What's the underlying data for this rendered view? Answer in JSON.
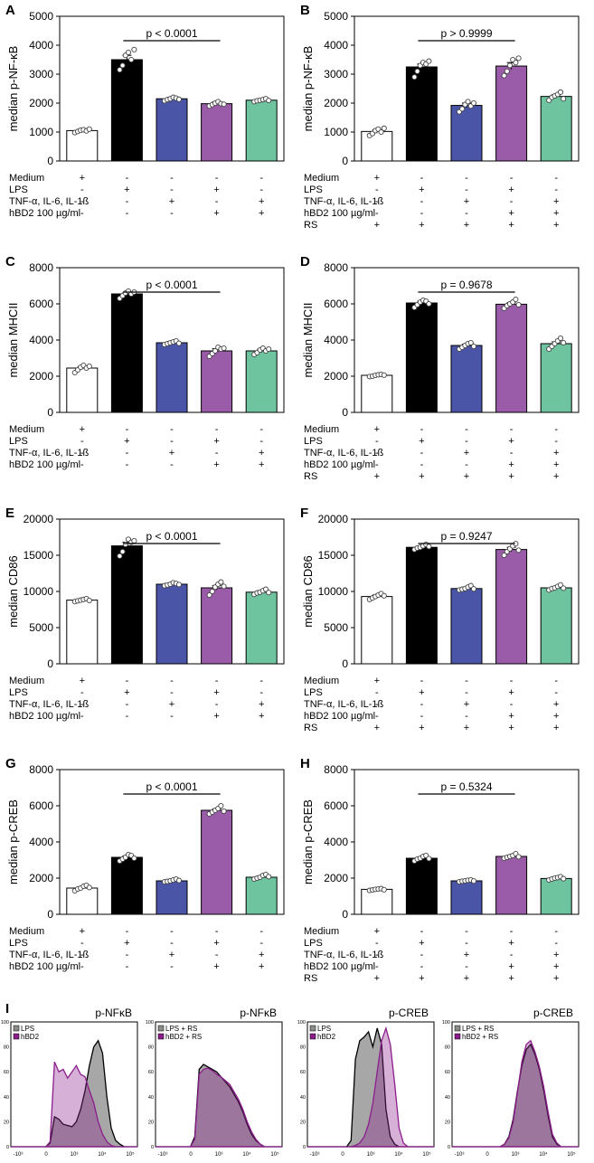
{
  "figure": {
    "colors": {
      "medium": "#ffffff",
      "lps": "#000000",
      "tnf": "#4a55a8",
      "hbd2": "#9a5ba8",
      "combo": "#6fc4a0",
      "hist_lps": "#8a8a8a",
      "hist_hbd2": "#8b1e8b"
    },
    "row_labels": [
      "Medium",
      "LPS",
      "TNF-α, IL-6, IL-1ß",
      "hBD2 100 µg/ml",
      "RS"
    ],
    "treatment_signs": [
      [
        "+",
        "-",
        "-",
        "-",
        "-"
      ],
      [
        "-",
        "+",
        "-",
        "+",
        "-"
      ],
      [
        "-",
        "-",
        "+",
        "-",
        "+"
      ],
      [
        "-",
        "-",
        "-",
        "+",
        "+"
      ],
      [
        "+",
        "+",
        "+",
        "+",
        "+"
      ]
    ]
  },
  "chart_data": [
    {
      "panel": "A",
      "type": "bar",
      "ylabel": "median p-NF-κB",
      "ylim": [
        0,
        5000
      ],
      "yticks": [
        0,
        1000,
        2000,
        3000,
        4000,
        5000
      ],
      "categories": [
        "Medium",
        "LPS",
        "TNF-α, IL-6, IL-1ß",
        "LPS + hBD2",
        "TNF-α, IL-6, IL-1ß + hBD2"
      ],
      "values": [
        1050,
        3500,
        2150,
        1980,
        2100
      ],
      "errors": [
        40,
        150,
        50,
        60,
        50
      ],
      "points": [
        [
          980,
          1020,
          1060,
          1080,
          1040,
          1100
        ],
        [
          3150,
          3300,
          3650,
          3750,
          3500,
          3850
        ],
        [
          2080,
          2120,
          2150,
          2200,
          2170,
          2130
        ],
        [
          1900,
          1950,
          2000,
          2050,
          1980,
          1960
        ],
        [
          2050,
          2080,
          2100,
          2120,
          2150,
          2090
        ]
      ],
      "comparison": {
        "from": 1,
        "to": 3,
        "label": "p < 0.0001"
      },
      "rs": false
    },
    {
      "panel": "B",
      "type": "bar",
      "ylabel": "median p-NF-κB",
      "ylim": [
        0,
        5000
      ],
      "yticks": [
        0,
        1000,
        2000,
        3000,
        4000,
        5000
      ],
      "categories": [
        "Medium",
        "LPS",
        "TNF-α, IL-6, IL-1ß",
        "LPS + hBD2",
        "TNF-α, IL-6, IL-1ß + hBD2"
      ],
      "values": [
        1020,
        3250,
        1920,
        3280,
        2230
      ],
      "errors": [
        60,
        100,
        80,
        120,
        60
      ],
      "points": [
        [
          880,
          950,
          1050,
          1100,
          1000,
          1130
        ],
        [
          2900,
          3100,
          3300,
          3400,
          3350,
          3450
        ],
        [
          1700,
          1800,
          1950,
          2050,
          1900,
          2000
        ],
        [
          2950,
          3100,
          3300,
          3500,
          3400,
          3550
        ],
        [
          2100,
          2200,
          2250,
          2300,
          2380,
          2150
        ]
      ],
      "comparison": {
        "from": 1,
        "to": 3,
        "label": "p > 0.9999"
      },
      "rs": true
    },
    {
      "panel": "C",
      "type": "bar",
      "ylabel": "median MHCII",
      "ylim": [
        0,
        8000
      ],
      "yticks": [
        0,
        2000,
        4000,
        6000,
        8000
      ],
      "categories": [
        "Medium",
        "LPS",
        "TNF-α, IL-6, IL-1ß",
        "LPS + hBD2",
        "TNF-α, IL-6, IL-1ß + hBD2"
      ],
      "values": [
        2450,
        6550,
        3850,
        3400,
        3400
      ],
      "errors": [
        80,
        80,
        60,
        120,
        90
      ],
      "points": [
        [
          2200,
          2350,
          2500,
          2600,
          2450,
          2550
        ],
        [
          6300,
          6450,
          6600,
          6700,
          6550,
          6650
        ],
        [
          3750,
          3800,
          3850,
          3900,
          3950,
          3820
        ],
        [
          3100,
          3250,
          3400,
          3600,
          3500,
          3550
        ],
        [
          3200,
          3300,
          3450,
          3550,
          3400,
          3500
        ]
      ],
      "comparison": {
        "from": 1,
        "to": 3,
        "label": "p < 0.0001"
      },
      "rs": false
    },
    {
      "panel": "D",
      "type": "bar",
      "ylabel": "median MHCII",
      "ylim": [
        0,
        8000
      ],
      "yticks": [
        0,
        2000,
        4000,
        6000,
        8000
      ],
      "categories": [
        "Medium",
        "LPS",
        "TNF-α, IL-6, IL-1ß",
        "LPS + hBD2",
        "TNF-α, IL-6, IL-1ß + hBD2"
      ],
      "values": [
        2050,
        6050,
        3700,
        5980,
        3800
      ],
      "errors": [
        40,
        90,
        70,
        90,
        100
      ],
      "points": [
        [
          1980,
          2000,
          2050,
          2080,
          2100,
          2060
        ],
        [
          5800,
          5950,
          6100,
          6200,
          6150,
          6000
        ],
        [
          3500,
          3600,
          3700,
          3800,
          3850,
          3650
        ],
        [
          5750,
          5900,
          6000,
          6100,
          6250,
          5950
        ],
        [
          3500,
          3650,
          3800,
          3950,
          4100,
          3850
        ]
      ],
      "comparison": {
        "from": 1,
        "to": 3,
        "label": "p = 0.9678"
      },
      "rs": true
    },
    {
      "panel": "E",
      "type": "bar",
      "ylabel": "median CD86",
      "ylim": [
        0,
        20000
      ],
      "yticks": [
        0,
        5000,
        10000,
        15000,
        20000
      ],
      "categories": [
        "Medium",
        "LPS",
        "TNF-α, IL-6, IL-1ß",
        "LPS + hBD2",
        "TNF-α, IL-6, IL-1ß + hBD2"
      ],
      "values": [
        8800,
        16300,
        11000,
        10500,
        9900
      ],
      "errors": [
        100,
        500,
        120,
        300,
        150
      ],
      "points": [
        [
          8600,
          8700,
          8800,
          8900,
          9000,
          8750
        ],
        [
          14900,
          15500,
          16500,
          17200,
          16800,
          17000
        ],
        [
          10800,
          10900,
          11000,
          11200,
          11100,
          10950
        ],
        [
          9500,
          10000,
          10600,
          11000,
          11300,
          10700
        ],
        [
          9600,
          9800,
          9900,
          10100,
          10300,
          9850
        ]
      ],
      "comparison": {
        "from": 1,
        "to": 3,
        "label": "p < 0.0001"
      },
      "rs": false
    },
    {
      "panel": "F",
      "type": "bar",
      "ylabel": "median CD86",
      "ylim": [
        0,
        20000
      ],
      "yticks": [
        0,
        5000,
        10000,
        15000,
        20000
      ],
      "categories": [
        "Medium",
        "LPS",
        "TNF-α, IL-6, IL-1ß",
        "LPS + hBD2",
        "TNF-α, IL-6, IL-1ß + hBD2"
      ],
      "values": [
        9300,
        16100,
        10400,
        15800,
        10500
      ],
      "errors": [
        200,
        150,
        100,
        300,
        120
      ],
      "points": [
        [
          8900,
          9100,
          9300,
          9500,
          9700,
          9400
        ],
        [
          15800,
          16000,
          16100,
          16300,
          16500,
          16200
        ],
        [
          10200,
          10300,
          10400,
          10600,
          10800,
          10350
        ],
        [
          15000,
          15500,
          15900,
          16300,
          16600,
          15700
        ],
        [
          10200,
          10400,
          10500,
          10700,
          10900,
          10450
        ]
      ],
      "comparison": {
        "from": 1,
        "to": 3,
        "label": "p = 0.9247"
      },
      "rs": true
    },
    {
      "panel": "G",
      "type": "bar",
      "ylabel": "median p-CREB",
      "ylim": [
        0,
        8000
      ],
      "yticks": [
        0,
        2000,
        4000,
        6000,
        8000
      ],
      "categories": [
        "Medium",
        "LPS",
        "TNF-α, IL-6, IL-1ß",
        "LPS + hBD2",
        "TNF-α, IL-6, IL-1ß + hBD2"
      ],
      "values": [
        1450,
        3150,
        1850,
        5750,
        2050
      ],
      "errors": [
        60,
        80,
        40,
        70,
        60
      ],
      "points": [
        [
          1300,
          1400,
          1450,
          1550,
          1600,
          1480
        ],
        [
          2950,
          3050,
          3150,
          3300,
          3250,
          3100
        ],
        [
          1800,
          1820,
          1850,
          1900,
          1950,
          1870
        ],
        [
          5550,
          5650,
          5750,
          5850,
          6000,
          5700
        ],
        [
          1950,
          2000,
          2050,
          2150,
          2200,
          2080
        ]
      ],
      "comparison": {
        "from": 1,
        "to": 3,
        "label": "p < 0.0001"
      },
      "rs": false
    },
    {
      "panel": "H",
      "type": "bar",
      "ylabel": "median p-CREB",
      "ylim": [
        0,
        8000
      ],
      "yticks": [
        0,
        2000,
        4000,
        6000,
        8000
      ],
      "categories": [
        "Medium",
        "LPS",
        "TNF-α, IL-6, IL-1ß",
        "LPS + hBD2",
        "TNF-α, IL-6, IL-1ß + hBD2"
      ],
      "values": [
        1380,
        3100,
        1850,
        3200,
        1980
      ],
      "errors": [
        30,
        60,
        30,
        50,
        40
      ],
      "points": [
        [
          1320,
          1350,
          1380,
          1400,
          1420,
          1360
        ],
        [
          2950,
          3050,
          3100,
          3200,
          3250,
          3080
        ],
        [
          1800,
          1830,
          1850,
          1880,
          1900,
          1840
        ],
        [
          3100,
          3150,
          3200,
          3250,
          3350,
          3180
        ],
        [
          1900,
          1950,
          2000,
          2030,
          2080,
          1970
        ]
      ],
      "comparison": {
        "from": 1,
        "to": 3,
        "label": "p = 0.5324"
      },
      "rs": true
    },
    {
      "panel": "I",
      "type": "histogram-overlay",
      "x_scale": "log",
      "x_tick_labels": [
        "-10³",
        "0",
        "10³",
        "10⁴",
        "10⁵"
      ],
      "y_tick_labels": [
        "0",
        "20",
        "40",
        "60",
        "80",
        "100"
      ],
      "plots": [
        {
          "title": "p-NFκB",
          "legend": [
            "LPS",
            "hBD2"
          ],
          "series": [
            {
              "name": "LPS",
              "color_key": "hist_lps",
              "density": [
                0,
                0,
                0,
                0,
                0,
                0,
                0,
                0,
                0,
                3,
                24,
                22,
                18,
                17,
                16,
                20,
                30,
                45,
                65,
                80,
                85,
                75,
                40,
                15,
                5,
                2,
                0,
                0,
                0,
                0
              ]
            },
            {
              "name": "hBD2",
              "color_key": "hist_hbd2",
              "density": [
                0,
                0,
                0,
                0,
                0,
                0,
                0,
                0,
                0,
                4,
                68,
                60,
                62,
                55,
                60,
                65,
                58,
                56,
                45,
                35,
                20,
                10,
                4,
                1,
                0,
                0,
                0,
                0,
                0,
                0
              ]
            }
          ]
        },
        {
          "title": "p-NFκB",
          "legend": [
            "LPS + RS",
            "hBD2 + RS"
          ],
          "series": [
            {
              "name": "LPS + RS",
              "color_key": "hist_lps",
              "density": [
                0,
                0,
                0,
                0,
                0,
                0,
                0,
                0,
                0,
                8,
                62,
                66,
                64,
                62,
                60,
                56,
                52,
                48,
                42,
                36,
                28,
                18,
                10,
                5,
                2,
                0,
                0,
                0,
                0,
                0
              ]
            },
            {
              "name": "hBD2 + RS",
              "color_key": "hist_hbd2",
              "density": [
                0,
                0,
                0,
                0,
                0,
                0,
                0,
                0,
                0,
                6,
                58,
                62,
                63,
                61,
                58,
                56,
                53,
                50,
                44,
                38,
                30,
                20,
                12,
                6,
                2,
                0,
                0,
                0,
                0,
                0
              ]
            }
          ]
        },
        {
          "title": "p-CREB",
          "legend": [
            "LPS",
            "hBD2"
          ],
          "series": [
            {
              "name": "LPS",
              "color_key": "hist_lps",
              "density": [
                0,
                0,
                0,
                0,
                0,
                0,
                0,
                0,
                0,
                0,
                5,
                70,
                85,
                88,
                92,
                80,
                95,
                82,
                30,
                8,
                2,
                0,
                0,
                0,
                0,
                0,
                0,
                0,
                0,
                0
              ]
            },
            {
              "name": "hBD2",
              "color_key": "hist_hbd2",
              "density": [
                0,
                0,
                0,
                0,
                0,
                0,
                0,
                0,
                0,
                0,
                0,
                1,
                3,
                8,
                18,
                35,
                60,
                85,
                95,
                82,
                50,
                15,
                3,
                0,
                0,
                0,
                0,
                0,
                0,
                0
              ]
            }
          ]
        },
        {
          "title": "p-CREB",
          "legend": [
            "LPS + RS",
            "hBD2 + RS"
          ],
          "series": [
            {
              "name": "LPS + RS",
              "color_key": "hist_lps",
              "density": [
                0,
                0,
                0,
                0,
                0,
                0,
                0,
                0,
                0,
                0,
                0,
                0,
                2,
                8,
                22,
                45,
                65,
                78,
                82,
                74,
                62,
                45,
                25,
                8,
                2,
                0,
                0,
                0,
                0,
                0
              ]
            },
            {
              "name": "hBD2 + RS",
              "color_key": "hist_hbd2",
              "density": [
                0,
                0,
                0,
                0,
                0,
                0,
                0,
                0,
                0,
                0,
                0,
                0,
                2,
                7,
                20,
                44,
                68,
                82,
                85,
                76,
                64,
                48,
                28,
                10,
                3,
                0,
                0,
                0,
                0,
                0
              ]
            }
          ]
        }
      ]
    }
  ]
}
